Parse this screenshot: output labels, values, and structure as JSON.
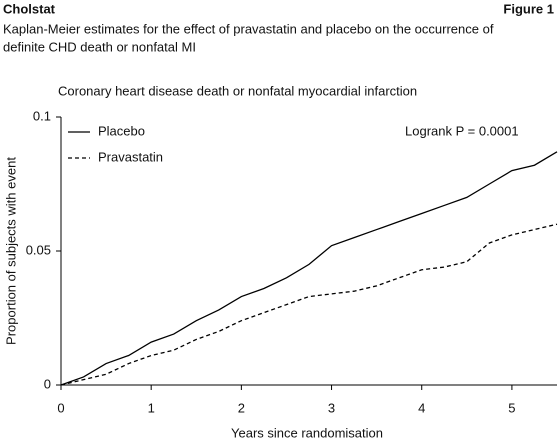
{
  "header": {
    "source": "Cholstat",
    "figure": "Figure 1",
    "caption": [
      "Kaplan-Meier estimates for the effect of pravastatin and placebo on the occurrence of",
      "definite CHD death or nonfatal MI"
    ]
  },
  "chart_data": {
    "type": "line",
    "title": "Coronary heart disease death or nonfatal myocardial infarction",
    "xlabel": "Years since randomisation",
    "ylabel": "Proportion of subjects with event",
    "annotation": "Logrank P = 0.0001",
    "x": [
      0,
      0.25,
      0.5,
      0.75,
      1,
      1.25,
      1.5,
      1.75,
      2,
      2.25,
      2.5,
      2.75,
      3,
      3.25,
      3.5,
      3.75,
      4,
      4.25,
      4.5,
      4.75,
      5,
      5.25,
      5.5
    ],
    "series": [
      {
        "name": "Placebo",
        "color": "#000000",
        "dash": "solid",
        "values": [
          0,
          0.003,
          0.008,
          0.011,
          0.016,
          0.019,
          0.024,
          0.028,
          0.033,
          0.036,
          0.04,
          0.045,
          0.052,
          0.055,
          0.058,
          0.061,
          0.064,
          0.067,
          0.07,
          0.075,
          0.08,
          0.082,
          0.087
        ]
      },
      {
        "name": "Pravastatin",
        "color": "#000000",
        "dash": "dashed",
        "values": [
          0,
          0.002,
          0.004,
          0.008,
          0.011,
          0.013,
          0.017,
          0.02,
          0.024,
          0.027,
          0.03,
          0.033,
          0.034,
          0.035,
          0.037,
          0.04,
          0.043,
          0.044,
          0.046,
          0.053,
          0.056,
          0.058,
          0.06
        ]
      }
    ],
    "xlim": [
      0,
      5.5
    ],
    "xticks": [
      0,
      1,
      2,
      3,
      4,
      5
    ],
    "ylim": [
      0,
      0.1
    ],
    "yticks": [
      0,
      0.05,
      0.1
    ],
    "legend": "upper left"
  }
}
